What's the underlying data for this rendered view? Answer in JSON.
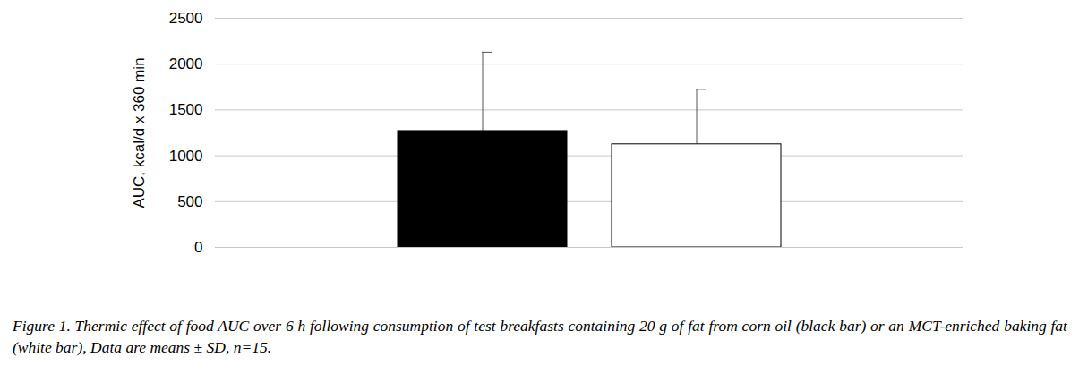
{
  "chart_data": {
    "type": "bar",
    "caption": "Figure 1. Thermic effect of food AUC over 6 h following consumption of test breakfasts containing 20 g of fat from corn oil (black bar) or an MCT-enriched baking fat (white bar), Data are means ± SD, n=15.",
    "y_label": "AUC, kcal/d x 360 min",
    "categories": [
      null,
      null
    ],
    "values": [
      1270,
      1125
    ],
    "errors": [
      860,
      600
    ],
    "colors": [
      "#000000",
      "#ffffff"
    ],
    "ylim": [
      0,
      2500
    ],
    "yticks": [
      0,
      500,
      1000,
      1500,
      2000,
      2500
    ],
    "grid": true
  }
}
